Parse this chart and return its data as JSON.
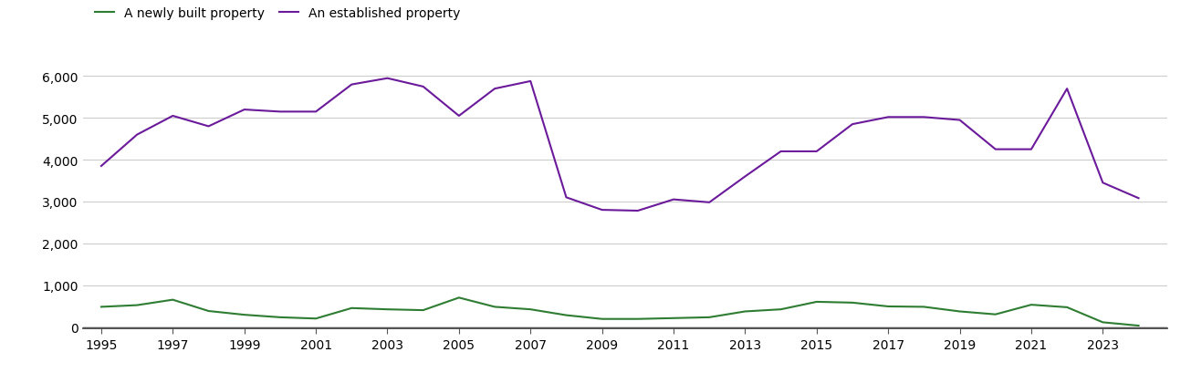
{
  "years": [
    1995,
    1996,
    1997,
    1998,
    1999,
    2000,
    2001,
    2002,
    2003,
    2004,
    2005,
    2006,
    2007,
    2008,
    2009,
    2010,
    2011,
    2012,
    2013,
    2014,
    2015,
    2016,
    2017,
    2018,
    2019,
    2020,
    2021,
    2022,
    2023,
    2024
  ],
  "newly_built": [
    480,
    520,
    650,
    380,
    290,
    230,
    200,
    450,
    420,
    400,
    700,
    480,
    420,
    280,
    190,
    190,
    210,
    230,
    370,
    420,
    600,
    580,
    490,
    480,
    370,
    300,
    530,
    470,
    110,
    30
  ],
  "established": [
    3850,
    4600,
    5050,
    4800,
    5200,
    5150,
    5150,
    5800,
    5950,
    5750,
    5050,
    5700,
    5880,
    3100,
    2800,
    2780,
    3050,
    2980,
    3600,
    4200,
    4200,
    4850,
    5020,
    5020,
    4950,
    4250,
    4250,
    5700,
    3450,
    3080
  ],
  "newly_built_color": "#2e7d32",
  "established_color": "#6a1a9a",
  "legend_labels": [
    "A newly built property",
    "An established property"
  ],
  "yticks": [
    0,
    1000,
    2000,
    3000,
    4000,
    5000,
    6000
  ],
  "xticks": [
    1995,
    1997,
    1999,
    2001,
    2003,
    2005,
    2007,
    2009,
    2011,
    2013,
    2015,
    2017,
    2019,
    2021,
    2023
  ],
  "ylim": [
    -30,
    6500
  ],
  "xlim": [
    1994.5,
    2024.8
  ],
  "background_color": "#ffffff",
  "grid_color": "#cccccc",
  "line_width": 1.5,
  "tick_label_size": 10,
  "legend_font_size": 10
}
